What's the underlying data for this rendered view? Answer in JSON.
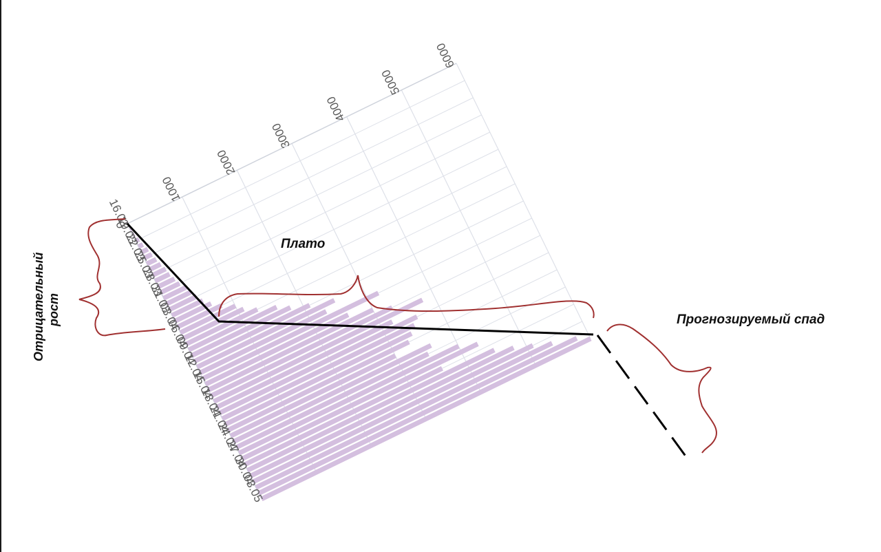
{
  "chart_data": {
    "type": "bar",
    "orientation": "horizontal, rotated",
    "categories": [
      "16.03",
      "17.03",
      "18.03",
      "19.03",
      "20.03",
      "21.03",
      "22.03",
      "23.03",
      "24.03",
      "25.03",
      "26.03",
      "27.03",
      "28.03",
      "29.03",
      "30.03",
      "31.03",
      "01.04",
      "02.04",
      "03.04",
      "04.04",
      "05.04",
      "06.04",
      "07.04",
      "08.04",
      "09.04",
      "10.04",
      "11.04",
      "12.04",
      "13.04",
      "14.04",
      "15.04",
      "16.04",
      "17.04",
      "18.04",
      "19.04",
      "20.04",
      "21.04",
      "22.04",
      "23.04",
      "24.04",
      "25.04",
      "26.04",
      "27.04",
      "28.04",
      "29.04",
      "30.04",
      "01.05",
      "02.05",
      "03.05"
    ],
    "tick_labels": [
      "16.03",
      "19.03",
      "22.03",
      "25.03",
      "28.03",
      "31.03",
      "03.04",
      "06.04",
      "09.04",
      "12.04",
      "15.04",
      "18.04",
      "21.04",
      "24.04",
      "27.04",
      "30.04",
      "03.05"
    ],
    "values": [
      10,
      20,
      30,
      60,
      80,
      120,
      140,
      170,
      200,
      240,
      260,
      300,
      340,
      420,
      440,
      500,
      560,
      660,
      800,
      1000,
      1100,
      1300,
      1600,
      1800,
      2100,
      2500,
      2300,
      3200,
      2600,
      3000,
      3300,
      3800,
      3200,
      3600,
      3500,
      3400,
      3300,
      3000,
      3600,
      3500,
      4000,
      4300,
      3600,
      4500,
      4800,
      5100,
      5400,
      5800,
      6000
    ],
    "xlim": [
      0,
      6000
    ],
    "x_ticks": [
      0,
      1000,
      2000,
      3000,
      4000,
      5000,
      6000
    ],
    "grid": true,
    "bar_color": "#d4bfdf"
  },
  "annotations": {
    "negative_growth": "Отрицательный рост",
    "plateau": "Плато",
    "forecast_decline": "Прогнозируемый спад"
  },
  "colors": {
    "trend_line": "#000000",
    "brace": "#a03030",
    "grid": "#dde0e8",
    "axis": "#cfd3dc"
  }
}
